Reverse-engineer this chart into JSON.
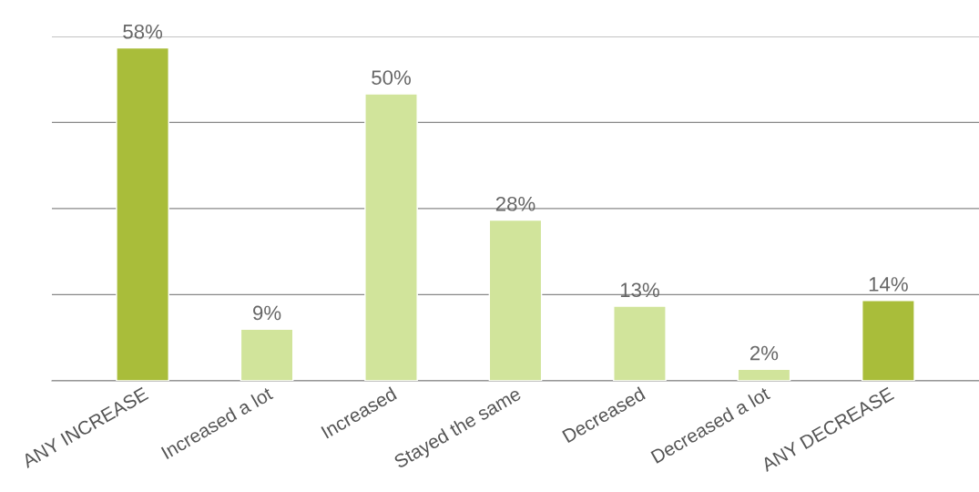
{
  "chart_data": {
    "type": "bar",
    "categories": [
      "ANY INCREASE",
      "Increased a lot",
      "Increased",
      "Stayed the same",
      "Decreased",
      "Decreased a lot",
      "ANY DECREASE"
    ],
    "values": [
      58,
      9,
      50,
      28,
      13,
      2,
      14
    ],
    "colors": [
      "#a9bd3a",
      "#d1e49b",
      "#d1e49b",
      "#d1e49b",
      "#d1e49b",
      "#d1e49b",
      "#a9bd3a"
    ],
    "relative": false,
    "ylim": [
      0,
      60
    ],
    "yticks": [
      {
        "value": 0,
        "label": null
      },
      {
        "value": 15,
        "label": null
      },
      {
        "value": 30,
        "label": null
      },
      {
        "value": 45,
        "label": null
      },
      {
        "value": 60,
        "label": null
      }
    ],
    "grid": "y",
    "data_labels": true,
    "value_labels": [
      "58%",
      "9%",
      "50%",
      "28%",
      "13%",
      "2%",
      "14%"
    ]
  }
}
